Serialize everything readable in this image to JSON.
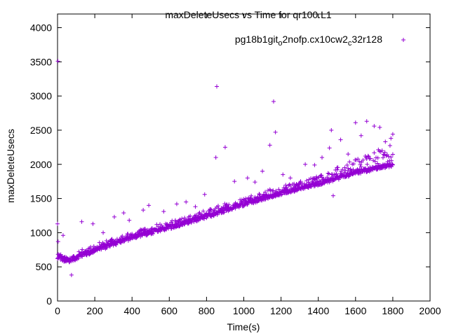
{
  "chart_data": {
    "type": "scatter",
    "title": "maxDeleteUsecs vs Time for qr100.L1",
    "xlabel": "Time(s)",
    "ylabel": "maxDeleteUsecs",
    "xlim": [
      0,
      2000
    ],
    "ylim": [
      0,
      4200
    ],
    "xticks": [
      0,
      200,
      400,
      600,
      800,
      1000,
      1200,
      1400,
      1600,
      1800,
      2000
    ],
    "yticks": [
      0,
      500,
      1000,
      1500,
      2000,
      2500,
      3000,
      3500,
      4000
    ],
    "grid": false,
    "legend_position": "top-right",
    "color": "#9400d3",
    "series": [
      {
        "name": "pg18b1git_o2nofp.cx10cw2_c32r128",
        "name_parts": [
          "pg18b1git",
          "o",
          "2nofp.cx10cw2",
          "c",
          "32r128"
        ],
        "trend": [
          [
            0,
            650
          ],
          [
            50,
            580
          ],
          [
            200,
            740
          ],
          [
            400,
            930
          ],
          [
            600,
            1080
          ],
          [
            800,
            1240
          ],
          [
            1000,
            1420
          ],
          [
            1200,
            1580
          ],
          [
            1400,
            1720
          ],
          [
            1600,
            1880
          ],
          [
            1800,
            2000
          ]
        ],
        "band_upper": [
          [
            0,
            700
          ],
          [
            50,
            640
          ],
          [
            200,
            820
          ],
          [
            400,
            1010
          ],
          [
            600,
            1160
          ],
          [
            800,
            1330
          ],
          [
            1000,
            1500
          ],
          [
            1200,
            1670
          ],
          [
            1400,
            1820
          ],
          [
            1550,
            2000
          ],
          [
            1600,
            2100
          ],
          [
            1800,
            2300
          ]
        ],
        "outliers": [
          [
            0,
            1130
          ],
          [
            2,
            3510
          ],
          [
            3,
            870
          ],
          [
            30,
            960
          ],
          [
            75,
            380
          ],
          [
            130,
            1160
          ],
          [
            190,
            1130
          ],
          [
            245,
            1000
          ],
          [
            305,
            1230
          ],
          [
            355,
            1290
          ],
          [
            385,
            1180
          ],
          [
            460,
            1330
          ],
          [
            490,
            1400
          ],
          [
            570,
            1310
          ],
          [
            640,
            1420
          ],
          [
            690,
            1450
          ],
          [
            740,
            1380
          ],
          [
            790,
            1560
          ],
          [
            850,
            2100
          ],
          [
            855,
            3140
          ],
          [
            900,
            2250
          ],
          [
            950,
            1750
          ],
          [
            1020,
            1800
          ],
          [
            1060,
            1740
          ],
          [
            1100,
            1900
          ],
          [
            1140,
            2280
          ],
          [
            1160,
            2920
          ],
          [
            1170,
            2470
          ],
          [
            1210,
            1850
          ],
          [
            1250,
            1800
          ],
          [
            1330,
            2000
          ],
          [
            1380,
            1990
          ],
          [
            1420,
            2100
          ],
          [
            1460,
            2240
          ],
          [
            1470,
            2500
          ],
          [
            1480,
            1540
          ],
          [
            1500,
            1950
          ],
          [
            1520,
            2360
          ],
          [
            1560,
            2150
          ],
          [
            1600,
            2610
          ],
          [
            1630,
            2420
          ],
          [
            1660,
            2630
          ],
          [
            1700,
            2560
          ],
          [
            1730,
            2540
          ],
          [
            1760,
            2330
          ],
          [
            1790,
            2380
          ],
          [
            1800,
            2440
          ]
        ]
      }
    ]
  }
}
